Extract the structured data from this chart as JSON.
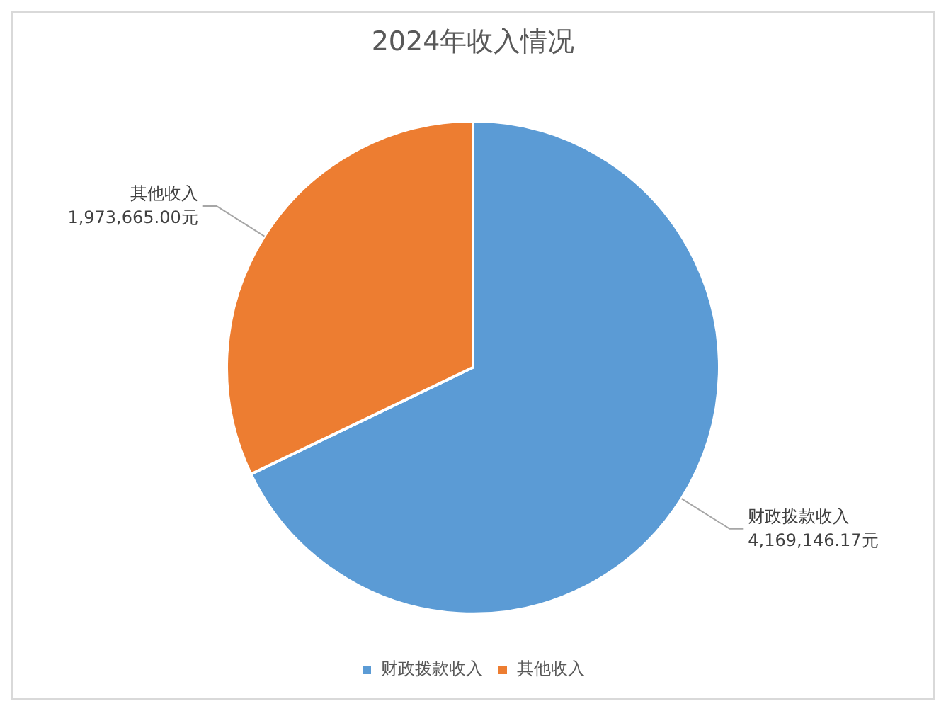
{
  "chart_data": {
    "type": "pie",
    "title": "2024年收入情况",
    "categories": [
      "财政拨款收入",
      "其他收入"
    ],
    "values": [
      4169146.17,
      1973665.0
    ],
    "colors": [
      "#5b9bd5",
      "#ed7d31"
    ],
    "value_labels": [
      "4,169,146.17元",
      "1,973,665.00元"
    ],
    "legend": "bottom"
  }
}
